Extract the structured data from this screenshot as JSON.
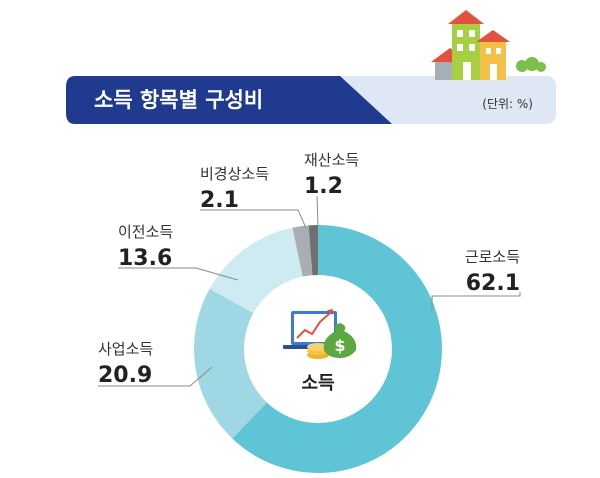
{
  "header": {
    "title": "소득 항목별 구성비",
    "unit": "(단위: %)"
  },
  "center_label": "소득",
  "chart_data": {
    "type": "pie",
    "title": "소득 항목별 구성비",
    "unit": "%",
    "categories": [
      "근로소득",
      "사업소득",
      "이전소득",
      "비경상소득",
      "재산소득"
    ],
    "values": [
      62.1,
      20.9,
      13.6,
      2.1,
      1.2
    ],
    "value_labels": [
      "62.1",
      "20.9",
      "13.6",
      "2.1",
      "1.2"
    ],
    "colors": [
      "#5fc4d6",
      "#9fd8e4",
      "#cdebf1",
      "#a9aeb2",
      "#6d6f73"
    ]
  }
}
